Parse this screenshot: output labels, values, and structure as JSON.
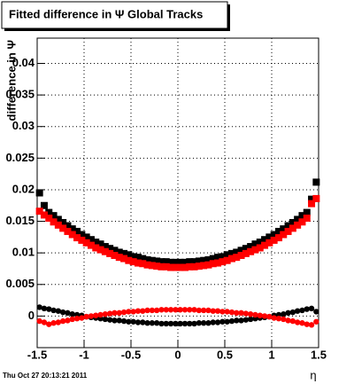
{
  "chart_data": {
    "type": "scatter",
    "title": "Fitted difference in  Ψ   Global Tracks",
    "y_label": "difference in Ψ",
    "x_label": "η",
    "footer": "Thu Oct 27 20:13:21 2011",
    "xlim": [
      -1.5,
      1.5
    ],
    "ylim": [
      -0.005,
      0.044
    ],
    "xticks": [
      -1.5,
      -1,
      -0.5,
      0,
      0.5,
      1,
      1.5
    ],
    "yticks": [
      0,
      0.005,
      0.01,
      0.015,
      0.02,
      0.025,
      0.03,
      0.035,
      0.04
    ],
    "grid": true,
    "x": [
      -1.475,
      -1.425,
      -1.375,
      -1.325,
      -1.275,
      -1.225,
      -1.175,
      -1.125,
      -1.075,
      -1.025,
      -0.975,
      -0.925,
      -0.875,
      -0.825,
      -0.775,
      -0.725,
      -0.675,
      -0.625,
      -0.575,
      -0.525,
      -0.475,
      -0.425,
      -0.375,
      -0.325,
      -0.275,
      -0.225,
      -0.175,
      -0.125,
      -0.075,
      -0.025,
      0.025,
      0.075,
      0.125,
      0.175,
      0.225,
      0.275,
      0.325,
      0.375,
      0.425,
      0.475,
      0.525,
      0.575,
      0.625,
      0.675,
      0.725,
      0.775,
      0.825,
      0.875,
      0.925,
      0.975,
      1.025,
      1.075,
      1.125,
      1.175,
      1.225,
      1.275,
      1.325,
      1.375,
      1.425,
      1.475
    ],
    "series": [
      {
        "color": "#000000",
        "marker": "square",
        "values": [
          0.0195,
          0.0175,
          0.0164,
          0.0159,
          0.0153,
          0.0148,
          0.0143,
          0.0138,
          0.0134,
          0.0129,
          0.0125,
          0.0121,
          0.0117,
          0.0114,
          0.011,
          0.0107,
          0.0104,
          0.0101,
          0.0099,
          0.0097,
          0.0094,
          0.0093,
          0.0091,
          0.0089,
          0.0088,
          0.0087,
          0.0086,
          0.0086,
          0.0085,
          0.0085,
          0.0085,
          0.0085,
          0.0086,
          0.0086,
          0.0087,
          0.0088,
          0.0089,
          0.0091,
          0.0093,
          0.0094,
          0.0097,
          0.0099,
          0.0101,
          0.0104,
          0.0107,
          0.011,
          0.0114,
          0.0117,
          0.0121,
          0.0125,
          0.0129,
          0.0134,
          0.0138,
          0.0143,
          0.0148,
          0.0153,
          0.0159,
          0.0164,
          0.0185,
          0.0212
        ]
      },
      {
        "color": "#ff0000",
        "marker": "square",
        "values": [
          0.0166,
          0.016,
          0.0155,
          0.0149,
          0.0144,
          0.0139,
          0.0134,
          0.0129,
          0.0124,
          0.012,
          0.0116,
          0.0112,
          0.0108,
          0.0105,
          0.0102,
          0.0099,
          0.0096,
          0.0093,
          0.0091,
          0.0088,
          0.0086,
          0.0084,
          0.0083,
          0.0081,
          0.008,
          0.0079,
          0.0078,
          0.0078,
          0.0077,
          0.0077,
          0.0077,
          0.0077,
          0.0078,
          0.0078,
          0.0079,
          0.008,
          0.0081,
          0.0083,
          0.0084,
          0.0086,
          0.0088,
          0.0091,
          0.0093,
          0.0096,
          0.0099,
          0.0102,
          0.0105,
          0.0108,
          0.0112,
          0.0116,
          0.012,
          0.0124,
          0.0129,
          0.0134,
          0.0139,
          0.0144,
          0.0149,
          0.0155,
          0.0178,
          0.0186
        ]
      },
      {
        "color": "#000000",
        "marker": "circle",
        "values": [
          0.0014,
          0.0012,
          0.0011,
          0.0009,
          0.0008,
          0.0006,
          0.0005,
          0.0003,
          0.0002,
          0.0001,
          -0.0001,
          -0.0002,
          -0.0003,
          -0.0004,
          -0.0005,
          -0.0006,
          -0.0007,
          -0.0007,
          -0.0008,
          -0.0009,
          -0.0009,
          -0.001,
          -0.001,
          -0.0011,
          -0.0011,
          -0.0011,
          -0.0012,
          -0.0012,
          -0.0012,
          -0.0012,
          -0.0012,
          -0.0012,
          -0.0012,
          -0.0012,
          -0.0011,
          -0.0011,
          -0.0011,
          -0.001,
          -0.001,
          -0.0009,
          -0.0009,
          -0.0008,
          -0.0007,
          -0.0007,
          -0.0006,
          -0.0005,
          -0.0004,
          -0.0003,
          -0.0002,
          -0.0001,
          0.0001,
          0.0002,
          0.0003,
          0.0005,
          0.0006,
          0.0008,
          0.0009,
          0.0011,
          0.0012,
          0.0007
        ]
      },
      {
        "color": "#ff0000",
        "marker": "circle",
        "values": [
          -0.0008,
          -0.001,
          -0.0013,
          -0.0011,
          -0.001,
          -0.0008,
          -0.0007,
          -0.0005,
          -0.0004,
          -0.0003,
          -0.0001,
          0.0,
          0.0001,
          0.0002,
          0.0003,
          0.0004,
          0.0005,
          0.0005,
          0.0006,
          0.0007,
          0.0007,
          0.0008,
          0.0008,
          0.0009,
          0.0009,
          0.0009,
          0.001,
          0.001,
          0.001,
          0.001,
          0.001,
          0.001,
          0.001,
          0.001,
          0.0009,
          0.0009,
          0.0009,
          0.0008,
          0.0008,
          0.0007,
          0.0007,
          0.0006,
          0.0005,
          0.0005,
          0.0004,
          0.0003,
          0.0002,
          0.0001,
          0.0,
          -0.0001,
          -0.0003,
          -0.0004,
          -0.0005,
          -0.0007,
          -0.0008,
          -0.001,
          -0.0011,
          -0.0013,
          -0.0014,
          -0.0009
        ]
      }
    ]
  }
}
